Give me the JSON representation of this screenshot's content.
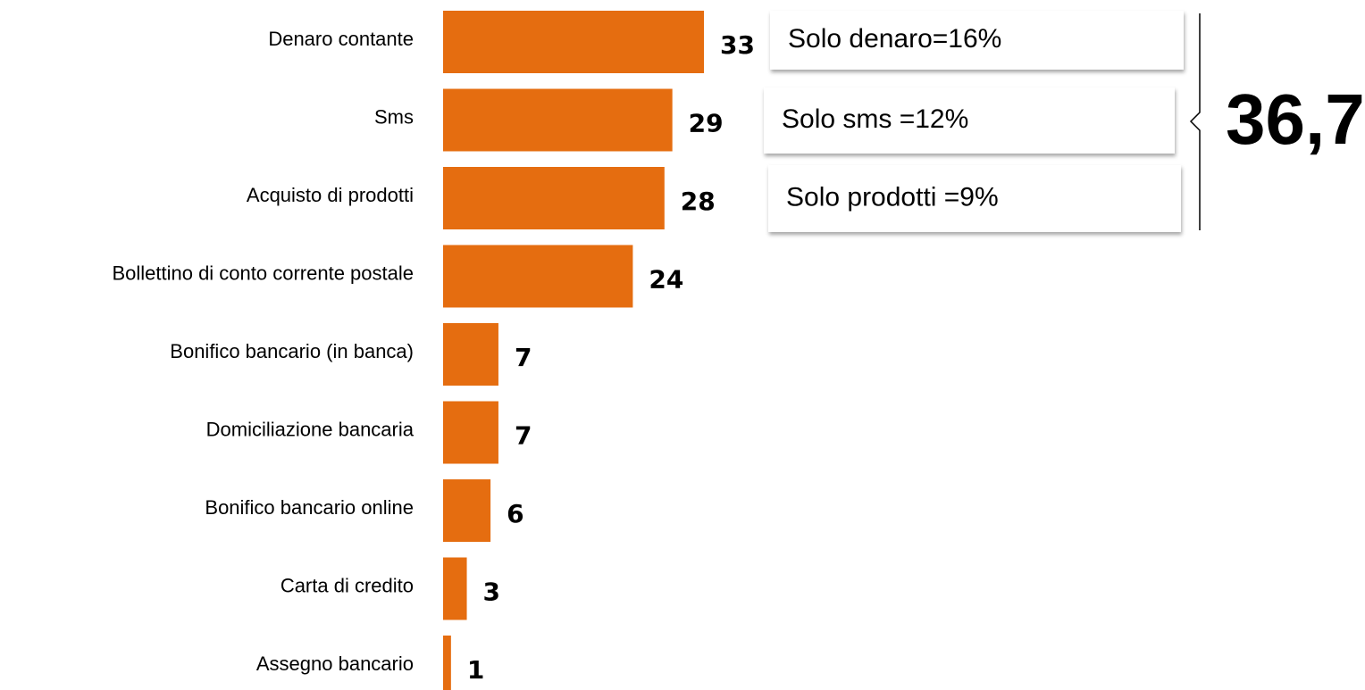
{
  "chart_data": {
    "type": "hbar",
    "categories": [
      "Denaro contante",
      "Sms",
      "Acquisto di prodotti",
      "Bollettino di conto corrente postale",
      "Bonifico bancario (in banca)",
      "Domiciliazione bancaria",
      "Bonifico bancario online",
      "Carta di credito",
      "Assegno bancario"
    ],
    "values": [
      33,
      29,
      28,
      24,
      7,
      7,
      6,
      3,
      1
    ],
    "color": "#e56d10",
    "annotations": [
      "Solo denaro=16%",
      "Solo sms =12%",
      "Solo prodotti =9%"
    ],
    "total_label": "36,7"
  }
}
